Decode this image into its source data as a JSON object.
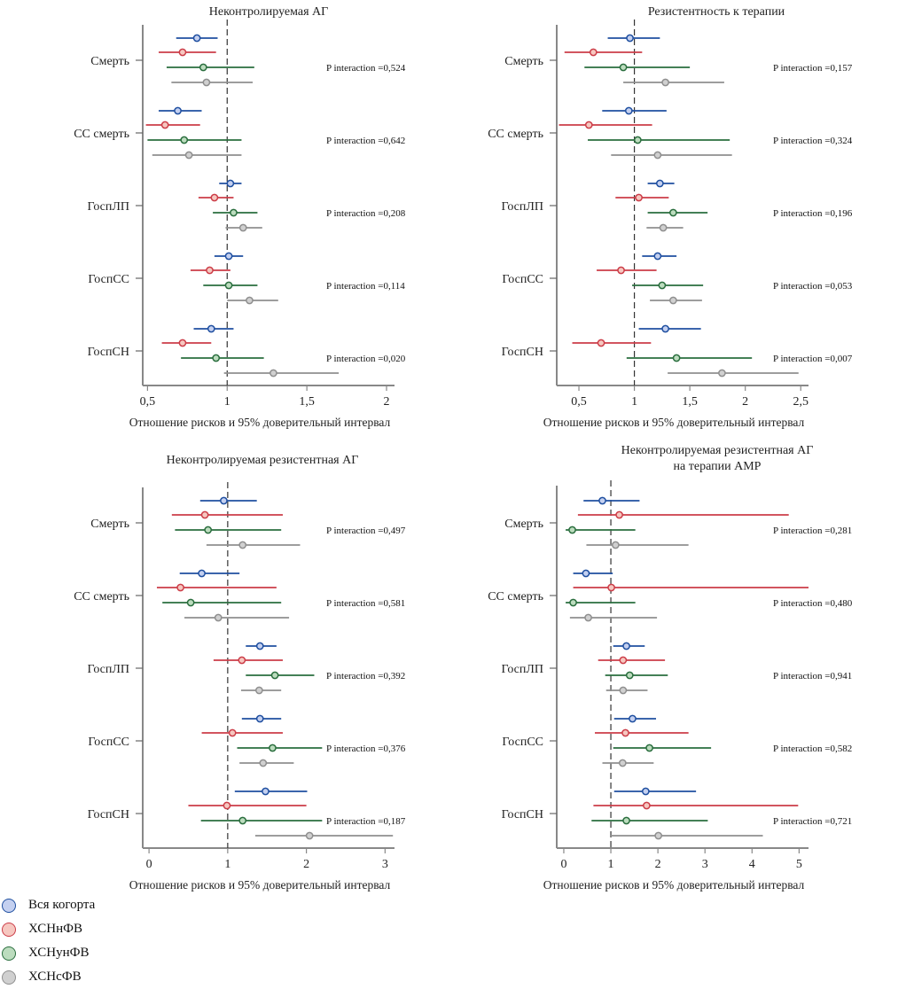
{
  "legend": [
    {
      "label": "Вся когорта",
      "stroke": "#1f4fa0",
      "fill": "#c4d0f0"
    },
    {
      "label": "ХСНнФВ",
      "stroke": "#cc3d48",
      "fill": "#f6c7c0"
    },
    {
      "label": "ХСНунФВ",
      "stroke": "#2a6e3e",
      "fill": "#bcdcbe"
    },
    {
      "label": "ХСНсФВ",
      "stroke": "#8f8f8f",
      "fill": "#d0d0d0"
    }
  ],
  "chart_data": [
    {
      "type": "forest",
      "title": "Неконтролируемая АГ",
      "xlabel": "Отношение рисков и 95% доверительный интервал",
      "xlim": [
        0.47,
        2.05
      ],
      "xticks": [
        0.5,
        1,
        1.5,
        2
      ],
      "xtick_labels": [
        "0,5",
        "1",
        "1,5",
        "2"
      ],
      "reference_line": 1,
      "categories": [
        "Смерть",
        "СС смерть",
        "ГоспЛП",
        "ГоспСС",
        "ГоспСН"
      ],
      "p_interaction": [
        "P interaction =0,524",
        "P interaction =0,642",
        "P interaction =0,208",
        "P interaction =0,114",
        "P interaction =0,020"
      ],
      "series": [
        {
          "name": "Вся когорта",
          "hr": [
            0.81,
            0.69,
            1.02,
            1.01,
            0.9
          ],
          "lo": [
            0.68,
            0.57,
            0.95,
            0.92,
            0.79
          ],
          "hi": [
            0.94,
            0.84,
            1.09,
            1.1,
            1.04
          ]
        },
        {
          "name": "ХСНнФВ",
          "hr": [
            0.72,
            0.61,
            0.92,
            0.89,
            0.72
          ],
          "lo": [
            0.57,
            0.49,
            0.82,
            0.77,
            0.59
          ],
          "hi": [
            0.93,
            0.83,
            1.04,
            1.02,
            0.9
          ]
        },
        {
          "name": "ХСНунФВ",
          "hr": [
            0.85,
            0.73,
            1.04,
            1.01,
            0.93
          ],
          "lo": [
            0.62,
            0.5,
            0.91,
            0.85,
            0.71
          ],
          "hi": [
            1.17,
            1.09,
            1.19,
            1.19,
            1.23
          ]
        },
        {
          "name": "ХСНсФВ",
          "hr": [
            0.87,
            0.76,
            1.1,
            1.14,
            1.29
          ],
          "lo": [
            0.65,
            0.53,
            0.99,
            1.0,
            0.98
          ],
          "hi": [
            1.16,
            1.09,
            1.22,
            1.32,
            1.7
          ]
        }
      ]
    },
    {
      "type": "forest",
      "title": "Резистентность к терапии",
      "xlabel": "Отношение рисков и 95% доверительный интервал",
      "xlim": [
        0.3,
        2.57
      ],
      "xticks": [
        0.5,
        1,
        1.5,
        2,
        2.5
      ],
      "xtick_labels": [
        "0,5",
        "1",
        "1,5",
        "2",
        "2,5"
      ],
      "reference_line": 1,
      "categories": [
        "Смерть",
        "СС смерть",
        "ГоспЛП",
        "ГоспСС",
        "ГоспСН"
      ],
      "p_interaction": [
        "P interaction =0,157",
        "P interaction =0,324",
        "P interaction =0,196",
        "P interaction =0,053",
        "P interaction =0,007"
      ],
      "series": [
        {
          "name": "Вся когорта",
          "hr": [
            0.96,
            0.95,
            1.23,
            1.21,
            1.28
          ],
          "lo": [
            0.76,
            0.71,
            1.12,
            1.07,
            1.04
          ],
          "hi": [
            1.23,
            1.29,
            1.36,
            1.38,
            1.6
          ]
        },
        {
          "name": "ХСНнФВ",
          "hr": [
            0.63,
            0.59,
            1.04,
            0.88,
            0.7
          ],
          "lo": [
            0.37,
            0.32,
            0.83,
            0.66,
            0.44
          ],
          "hi": [
            1.07,
            1.16,
            1.31,
            1.2,
            1.15
          ]
        },
        {
          "name": "ХСНунФВ",
          "hr": [
            0.9,
            1.03,
            1.35,
            1.25,
            1.38
          ],
          "lo": [
            0.55,
            0.58,
            1.12,
            0.98,
            0.93
          ],
          "hi": [
            1.5,
            1.86,
            1.66,
            1.62,
            2.06
          ]
        },
        {
          "name": "ХСНсФВ",
          "hr": [
            1.28,
            1.21,
            1.26,
            1.35,
            1.79
          ],
          "lo": [
            0.9,
            0.79,
            1.11,
            1.14,
            1.3
          ],
          "hi": [
            1.81,
            1.88,
            1.44,
            1.61,
            2.48
          ]
        }
      ]
    },
    {
      "type": "forest",
      "title": "Неконтролируемая резистентная АГ",
      "xlabel": "Отношение рисков и 95% доверительный интервал",
      "xlim": [
        -0.08,
        3.12
      ],
      "xticks": [
        0,
        1,
        2,
        3
      ],
      "xtick_labels": [
        "0",
        "1",
        "2",
        "3"
      ],
      "reference_line": 1,
      "categories": [
        "Смерть",
        "СС смерть",
        "ГоспЛП",
        "ГоспСС",
        "ГоспСН"
      ],
      "p_interaction": [
        "P interaction =0,497",
        "P interaction =0,581",
        "P interaction =0,392",
        "P interaction =0,376",
        "P interaction =0,187"
      ],
      "series": [
        {
          "name": "Вся когорта",
          "hr": [
            0.95,
            0.67,
            1.41,
            1.41,
            1.48
          ],
          "lo": [
            0.65,
            0.39,
            1.23,
            1.18,
            1.09
          ],
          "hi": [
            1.37,
            1.15,
            1.62,
            1.68,
            2.01
          ]
        },
        {
          "name": "ХСНнФВ",
          "hr": [
            0.71,
            0.4,
            1.18,
            1.06,
            0.99
          ],
          "lo": [
            0.29,
            0.1,
            0.82,
            0.67,
            0.5
          ],
          "hi": [
            1.7,
            1.62,
            1.7,
            1.7,
            2.0
          ]
        },
        {
          "name": "ХСНунФВ",
          "hr": [
            0.75,
            0.53,
            1.6,
            1.57,
            1.19
          ],
          "lo": [
            0.33,
            0.17,
            1.23,
            1.12,
            0.66
          ],
          "hi": [
            1.68,
            1.68,
            2.1,
            2.2,
            2.2
          ]
        },
        {
          "name": "ХСНсФВ",
          "hr": [
            1.19,
            0.88,
            1.4,
            1.45,
            2.04
          ],
          "lo": [
            0.73,
            0.45,
            1.17,
            1.15,
            1.35
          ],
          "hi": [
            1.92,
            1.78,
            1.68,
            1.84,
            3.1
          ]
        }
      ]
    },
    {
      "type": "forest",
      "title": "Неконтролируемая резистентная АГ",
      "subtitle": "на терапии АМР",
      "xlabel": "Отношение рисков и 95% доверительный интервал",
      "xlim": [
        -0.15,
        5.2
      ],
      "xticks": [
        0,
        1,
        2,
        3,
        4,
        5
      ],
      "xtick_labels": [
        "0",
        "1",
        "2",
        "3",
        "4",
        "5"
      ],
      "reference_line": 1,
      "categories": [
        "Смерть",
        "СС смерть",
        "ГоспЛП",
        "ГоспСС",
        "ГоспСН"
      ],
      "p_interaction": [
        "P interaction =0,281",
        "P interaction =0,480",
        "P interaction =0,941",
        "P interaction =0,582",
        "P interaction =0,721"
      ],
      "series": [
        {
          "name": "Вся когорта",
          "hr": [
            0.82,
            0.47,
            1.33,
            1.46,
            1.74
          ],
          "lo": [
            0.42,
            0.2,
            1.05,
            1.07,
            1.07
          ],
          "hi": [
            1.61,
            1.04,
            1.72,
            1.96,
            2.81
          ]
        },
        {
          "name": "ХСНнФВ",
          "hr": [
            1.18,
            1.01,
            1.26,
            1.31,
            1.76
          ],
          "lo": [
            0.3,
            0.2,
            0.73,
            0.66,
            0.63
          ],
          "hi": [
            4.78,
            5.3,
            2.15,
            2.65,
            4.98
          ]
        },
        {
          "name": "ХСНунФВ",
          "hr": [
            0.18,
            0.2,
            1.4,
            1.82,
            1.33
          ],
          "lo": [
            0.04,
            0.04,
            0.88,
            1.05,
            0.59
          ],
          "hi": [
            1.52,
            1.52,
            2.21,
            3.13,
            3.06
          ]
        },
        {
          "name": "ХСНсФВ",
          "hr": [
            1.1,
            0.52,
            1.26,
            1.25,
            2.01
          ],
          "lo": [
            0.48,
            0.13,
            0.9,
            0.82,
            0.98
          ],
          "hi": [
            2.65,
            1.98,
            1.78,
            1.91,
            4.23
          ]
        }
      ]
    }
  ]
}
